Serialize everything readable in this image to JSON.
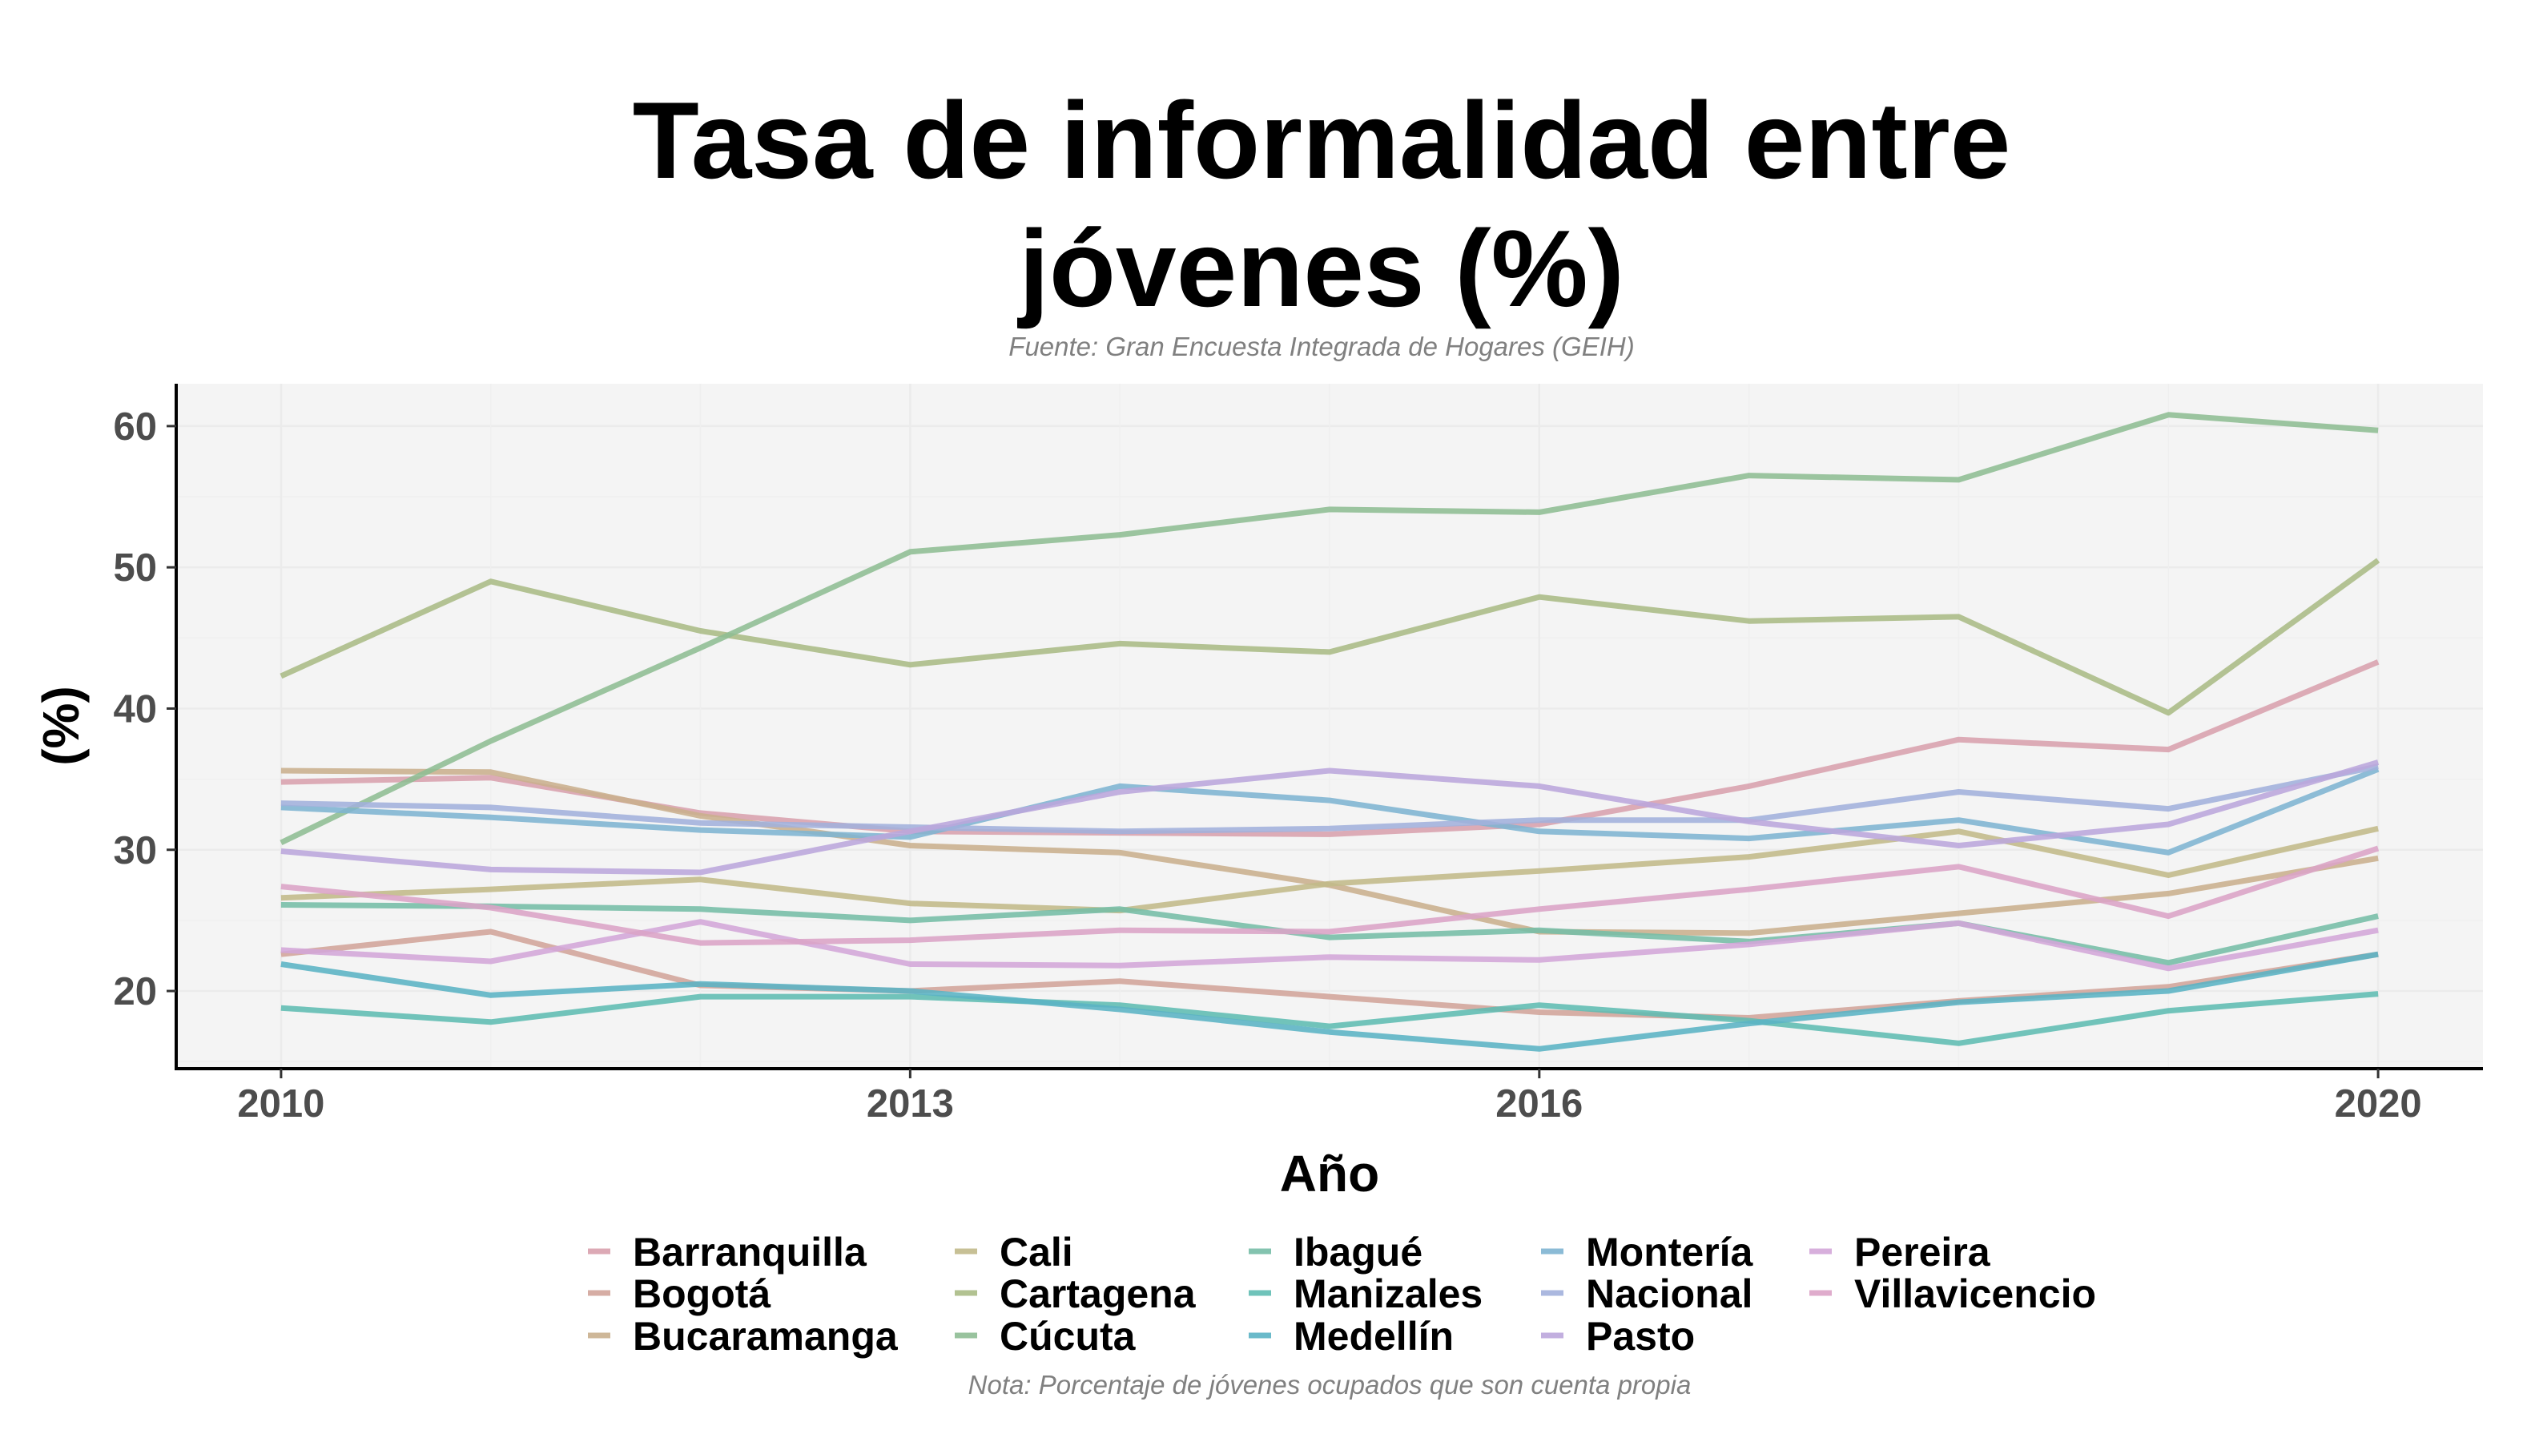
{
  "chart_data": {
    "type": "line",
    "title": [
      "Tasa de informalidad entre",
      "jóvenes (%)"
    ],
    "subtitle": "Fuente: Gran Encuesta Integrada de Hogares (GEIH)",
    "caption": "Nota: Porcentaje de jóvenes ocupados que son cuenta propia",
    "xlabel": "Año",
    "ylabel": "(%)",
    "xlim": [
      2009.5,
      2020.5
    ],
    "ylim": [
      14.5,
      63
    ],
    "x_ticks": [
      2010,
      2013,
      2016,
      2020
    ],
    "y_ticks": [
      20,
      30,
      40,
      50,
      60
    ],
    "grid": true,
    "legend_position": "bottom",
    "x": [
      2010,
      2011,
      2012,
      2013,
      2014,
      2015,
      2016,
      2017,
      2018,
      2019,
      2020
    ],
    "series": [
      {
        "name": "Barranquilla",
        "color": "#d8a0ad",
        "values": [
          34.8,
          35.1,
          32.6,
          31.3,
          31.2,
          31.1,
          31.8,
          34.5,
          37.8,
          37.1,
          43.3
        ]
      },
      {
        "name": "Bogotá",
        "color": "#d2a49a",
        "values": [
          22.6,
          24.2,
          20.4,
          20.0,
          20.7,
          19.6,
          18.5,
          18.1,
          19.3,
          20.3,
          22.6
        ]
      },
      {
        "name": "Bucaramanga",
        "color": "#c9af8d",
        "values": [
          35.6,
          35.5,
          32.4,
          30.3,
          29.8,
          27.5,
          24.2,
          24.1,
          25.5,
          26.9,
          29.4
        ]
      },
      {
        "name": "Cali",
        "color": "#c1b989",
        "values": [
          26.6,
          27.2,
          27.9,
          26.2,
          25.7,
          27.6,
          28.5,
          29.5,
          31.3,
          28.2,
          31.5
        ]
      },
      {
        "name": "Cartagena",
        "color": "#aabb85",
        "values": [
          42.3,
          49.0,
          45.5,
          43.1,
          44.6,
          44.0,
          47.9,
          46.2,
          46.5,
          39.7,
          50.5
        ]
      },
      {
        "name": "Cúcuta",
        "color": "#8ebd93",
        "values": [
          30.5,
          37.7,
          44.3,
          51.1,
          52.3,
          54.1,
          53.9,
          56.5,
          56.2,
          60.8,
          59.7
        ]
      },
      {
        "name": "Ibagué",
        "color": "#75bda6",
        "values": [
          26.1,
          26.0,
          25.8,
          25.0,
          25.8,
          23.8,
          24.3,
          23.5,
          24.8,
          22.0,
          25.3
        ]
      },
      {
        "name": "Manizales",
        "color": "#5fbcb2",
        "values": [
          18.8,
          17.8,
          19.6,
          19.6,
          19.0,
          17.5,
          19.0,
          17.9,
          16.3,
          18.6,
          19.8
        ]
      },
      {
        "name": "Medellín",
        "color": "#5ab3c4",
        "values": [
          21.9,
          19.7,
          20.5,
          20.0,
          18.7,
          17.1,
          15.9,
          17.7,
          19.2,
          20.0,
          22.6
        ]
      },
      {
        "name": "Montería",
        "color": "#7eb4d2",
        "values": [
          33.0,
          32.3,
          31.4,
          30.9,
          34.5,
          33.5,
          31.3,
          30.8,
          32.1,
          29.8,
          35.7
        ]
      },
      {
        "name": "Nacional",
        "color": "#a2b0dc",
        "values": [
          33.3,
          33.0,
          31.9,
          31.6,
          31.3,
          31.5,
          32.1,
          32.1,
          34.1,
          32.9,
          35.9
        ]
      },
      {
        "name": "Pasto",
        "color": "#bba6dc",
        "values": [
          29.9,
          28.6,
          28.4,
          31.3,
          34.1,
          35.6,
          34.5,
          32.0,
          30.3,
          31.8,
          36.2
        ]
      },
      {
        "name": "Pereira",
        "color": "#d3a6d8",
        "values": [
          22.9,
          22.1,
          24.9,
          21.9,
          21.8,
          22.4,
          22.2,
          23.3,
          24.8,
          21.6,
          24.3
        ]
      },
      {
        "name": "Villavicencio",
        "color": "#dba3c6",
        "values": [
          27.4,
          25.9,
          23.4,
          23.6,
          24.3,
          24.2,
          25.8,
          27.2,
          28.8,
          25.3,
          30.1
        ]
      }
    ]
  }
}
